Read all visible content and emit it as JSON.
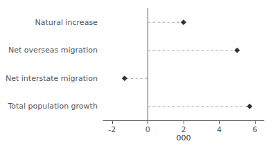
{
  "chart_data": {
    "type": "lollipop",
    "orientation": "horizontal",
    "categories": [
      "Natural increase",
      "Net overseas migration",
      "Net interstate migration",
      "Total population growth"
    ],
    "values": [
      2.0,
      5.0,
      -1.3,
      5.7
    ],
    "xlabel": "000",
    "xlim": [
      -2.5,
      6.5
    ],
    "xticks": [
      -2,
      0,
      2,
      4,
      6
    ],
    "color": "#000000",
    "marker": "diamond",
    "line_style": "dashed",
    "grid": false
  }
}
